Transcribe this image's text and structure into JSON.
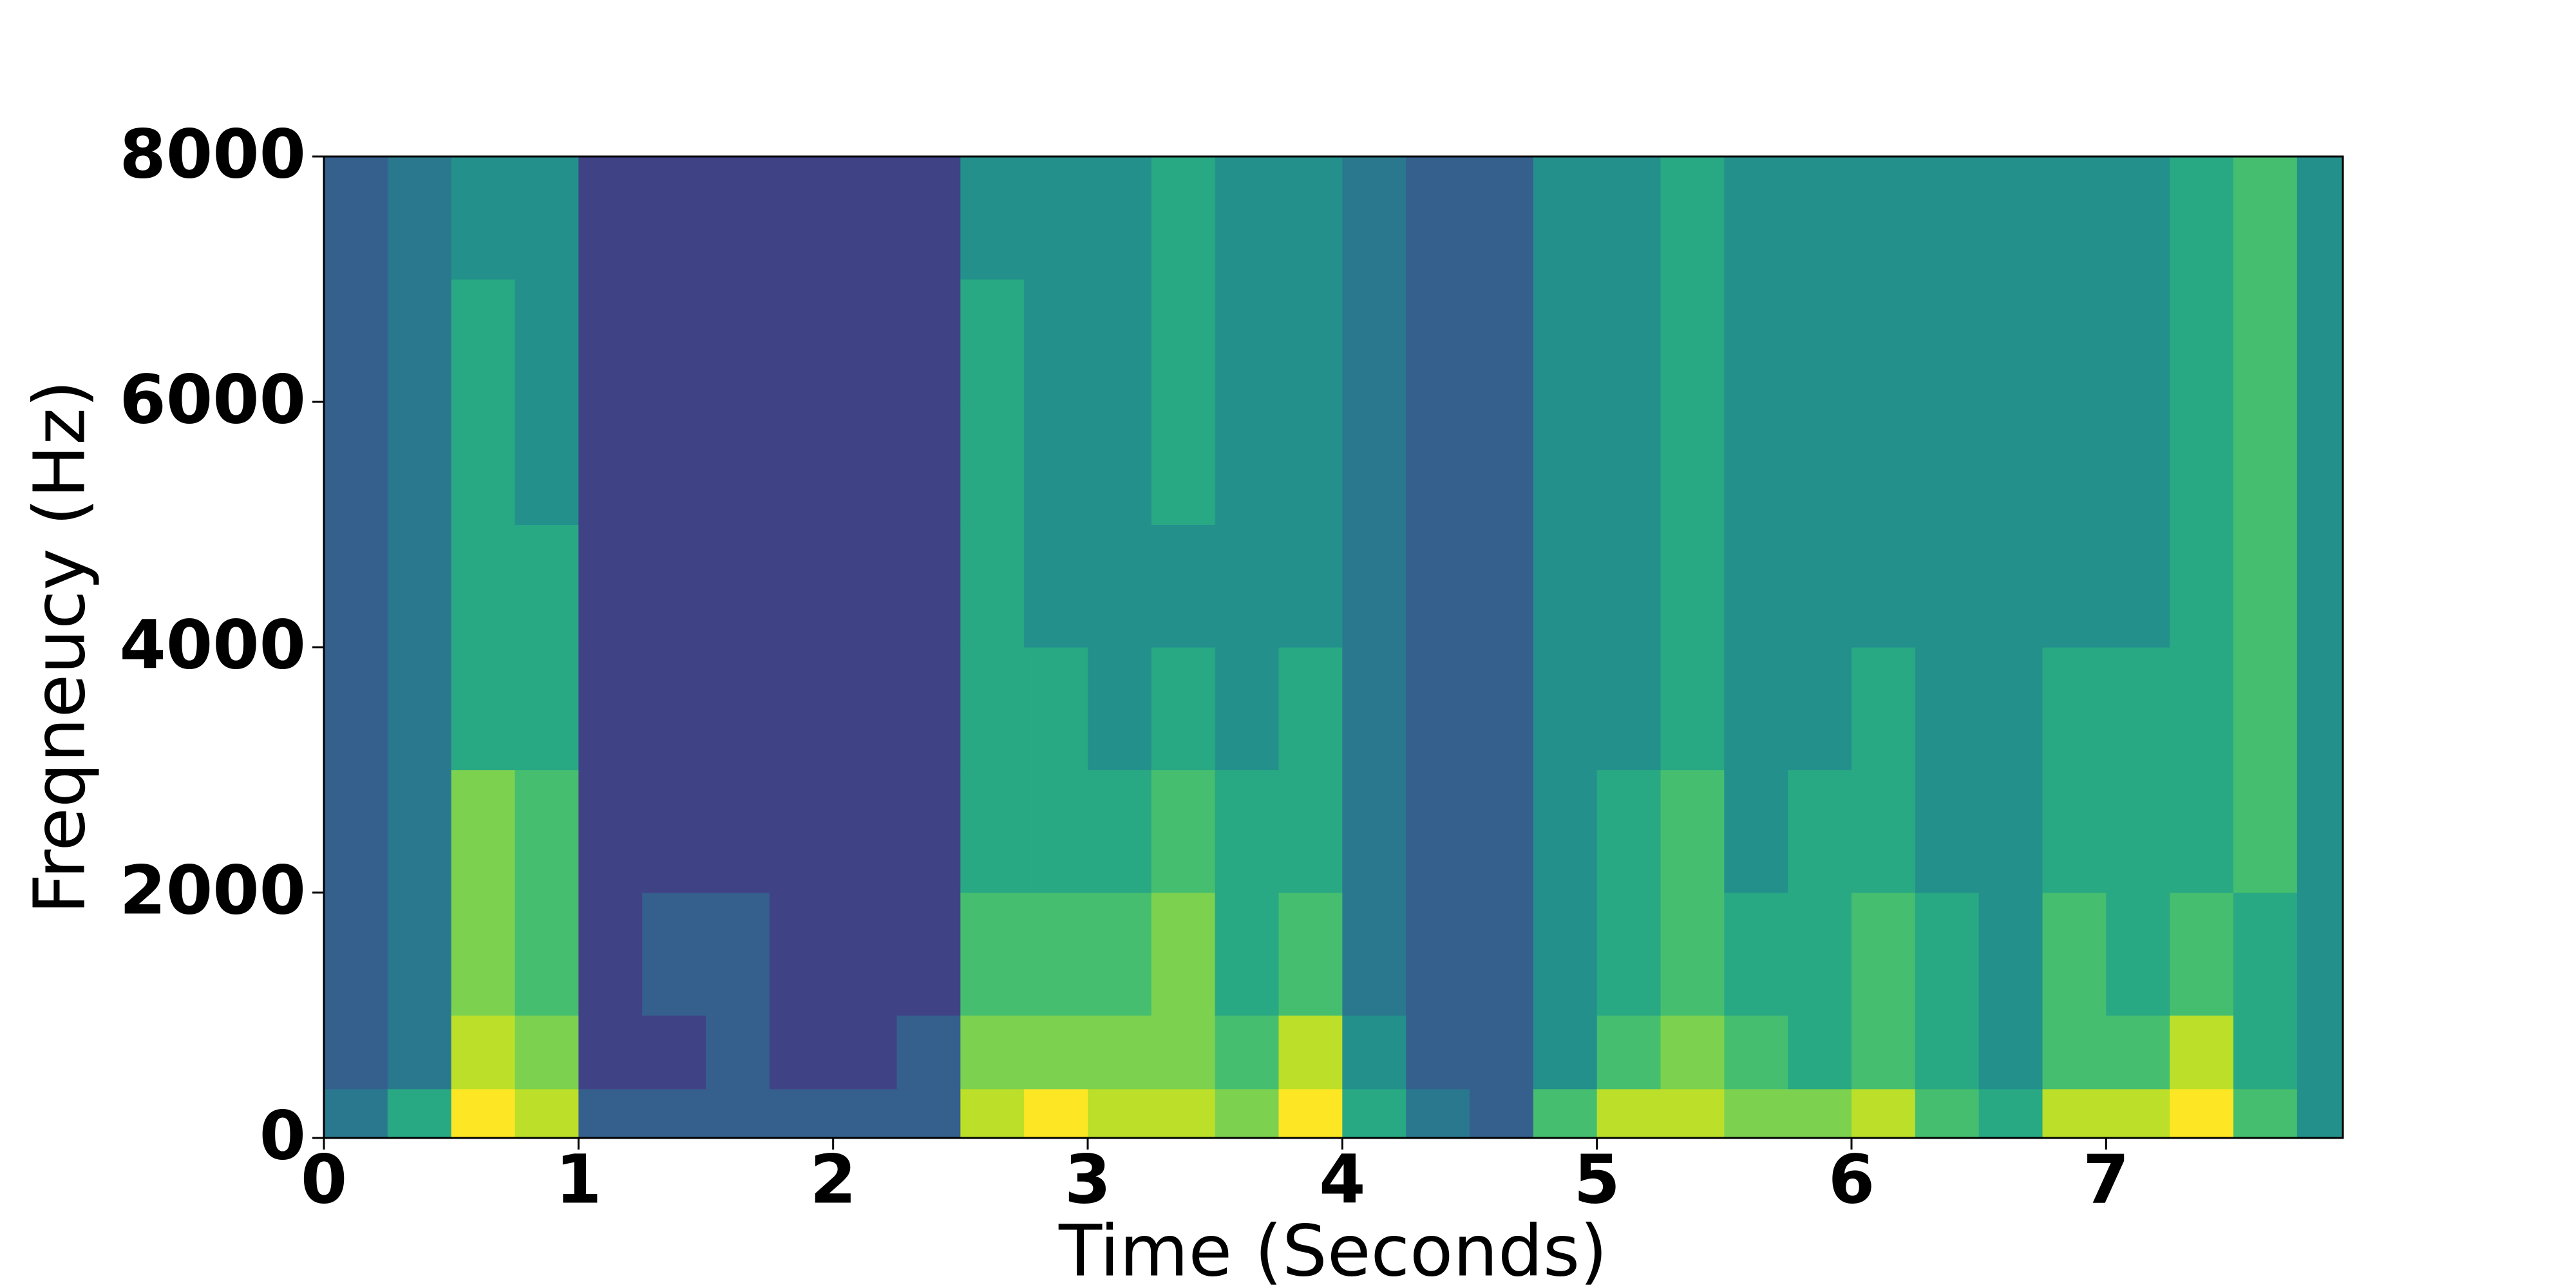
{
  "chart_data": {
    "type": "heatmap",
    "xlabel": "Time (Seconds)",
    "ylabel": "Freqneucy (Hz)",
    "xlim": [
      0,
      7.93
    ],
    "ylim": [
      0,
      8000
    ],
    "xticks": [
      0,
      1,
      2,
      3,
      4,
      5,
      6,
      7
    ],
    "yticks": [
      0,
      2000,
      4000,
      6000,
      8000
    ],
    "colormap": "viridis",
    "zlim": [
      0,
      10
    ],
    "x_bins": [
      0,
      0.25,
      0.5,
      0.75,
      1,
      1.25,
      1.5,
      1.75,
      2,
      2.25,
      2.5,
      2.75,
      3,
      3.25,
      3.5,
      3.75,
      4,
      4.25,
      4.5,
      4.75,
      5,
      5.25,
      5.5,
      5.75,
      6,
      6.25,
      6.5,
      6.75,
      7,
      7.25,
      7.5,
      7.75,
      7.93
    ],
    "y_bins": [
      0,
      400,
      1000,
      2000,
      3000,
      4000,
      5000,
      6000,
      7000,
      8000
    ],
    "values": [
      [
        4,
        3,
        3,
        3,
        3,
        3,
        3,
        3,
        3
      ],
      [
        6,
        4,
        4,
        4,
        4,
        4,
        4,
        4,
        4
      ],
      [
        10,
        9,
        8,
        8,
        6,
        6,
        6,
        6,
        5
      ],
      [
        9,
        8,
        7,
        7,
        6,
        6,
        5,
        5,
        5
      ],
      [
        3,
        2,
        2,
        2,
        2,
        2,
        2,
        2,
        2
      ],
      [
        3,
        2,
        3,
        2,
        2,
        2,
        2,
        2,
        2
      ],
      [
        3,
        3,
        3,
        2,
        2,
        2,
        2,
        2,
        2
      ],
      [
        3,
        2,
        2,
        2,
        2,
        2,
        2,
        2,
        2
      ],
      [
        3,
        2,
        2,
        2,
        2,
        2,
        2,
        2,
        2
      ],
      [
        3,
        3,
        2,
        2,
        2,
        2,
        2,
        2,
        2
      ],
      [
        9,
        8,
        7,
        6,
        6,
        6,
        6,
        6,
        5
      ],
      [
        10,
        8,
        7,
        6,
        6,
        5,
        5,
        5,
        5
      ],
      [
        9,
        8,
        7,
        6,
        5,
        5,
        5,
        5,
        5
      ],
      [
        9,
        8,
        8,
        7,
        6,
        5,
        6,
        6,
        6
      ],
      [
        8,
        7,
        6,
        6,
        5,
        5,
        5,
        5,
        5
      ],
      [
        10,
        9,
        7,
        6,
        6,
        5,
        5,
        5,
        5
      ],
      [
        6,
        5,
        4,
        4,
        4,
        4,
        4,
        4,
        4
      ],
      [
        4,
        3,
        3,
        3,
        3,
        3,
        3,
        3,
        3
      ],
      [
        3,
        3,
        3,
        3,
        3,
        3,
        3,
        3,
        3
      ],
      [
        7,
        5,
        5,
        5,
        5,
        5,
        5,
        5,
        5
      ],
      [
        9,
        7,
        6,
        6,
        5,
        5,
        5,
        5,
        5
      ],
      [
        9,
        8,
        7,
        7,
        6,
        6,
        6,
        6,
        6
      ],
      [
        8,
        7,
        6,
        5,
        5,
        5,
        5,
        5,
        5
      ],
      [
        8,
        6,
        6,
        6,
        5,
        5,
        5,
        5,
        5
      ],
      [
        9,
        7,
        7,
        6,
        6,
        5,
        5,
        5,
        5
      ],
      [
        7,
        6,
        6,
        5,
        5,
        5,
        5,
        5,
        5
      ],
      [
        6,
        5,
        5,
        5,
        5,
        5,
        5,
        5,
        5
      ],
      [
        9,
        7,
        7,
        6,
        6,
        5,
        5,
        5,
        5
      ],
      [
        9,
        7,
        6,
        6,
        6,
        5,
        5,
        5,
        5
      ],
      [
        10,
        9,
        7,
        6,
        6,
        6,
        6,
        6,
        6
      ],
      [
        7,
        6,
        6,
        7,
        7,
        7,
        7,
        7,
        7
      ],
      [
        5,
        5,
        5,
        5,
        5,
        5,
        5,
        5,
        5
      ]
    ]
  }
}
